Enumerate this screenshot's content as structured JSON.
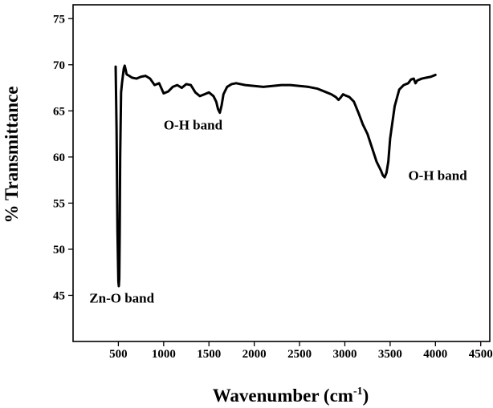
{
  "chart_data": {
    "type": "line",
    "title": "",
    "xlabel": "Wavenumber (cm",
    "xlabel_sup": "-1",
    "xlabel_close": ")",
    "ylabel": "% Transmittance",
    "xlim": [
      0,
      4600
    ],
    "ylim": [
      40,
      76.5
    ],
    "xticks": [
      500,
      1000,
      1500,
      2000,
      2500,
      3000,
      3500,
      4000,
      4500
    ],
    "yticks": [
      45,
      50,
      55,
      60,
      65,
      70,
      75
    ],
    "grid": false,
    "legend": "none",
    "line_color": "#000000",
    "series": [
      {
        "x": [
          470,
          480,
          490,
          500,
          505,
          510,
          515,
          520,
          530,
          540,
          550,
          560,
          570,
          580,
          590,
          600,
          620,
          650,
          700,
          750,
          800,
          850,
          900,
          950,
          1000,
          1050,
          1100,
          1150,
          1200,
          1250,
          1300,
          1350,
          1400,
          1450,
          1500,
          1550,
          1580,
          1600,
          1620,
          1640,
          1660,
          1700,
          1750,
          1800,
          1900,
          2000,
          2100,
          2200,
          2300,
          2400,
          2500,
          2600,
          2700,
          2800,
          2850,
          2900,
          2930,
          2950,
          2980,
          3000,
          3050,
          3100,
          3150,
          3200,
          3250,
          3300,
          3350,
          3400,
          3420,
          3440,
          3460,
          3480,
          3500,
          3550,
          3600,
          3650,
          3700,
          3730,
          3760,
          3780,
          3800,
          3850,
          3900,
          3950,
          4000
        ],
        "y": [
          69.8,
          63.0,
          52.0,
          46.5,
          46.0,
          46.8,
          52.0,
          60.0,
          67.0,
          68.0,
          68.8,
          69.6,
          69.9,
          69.5,
          69.0,
          68.9,
          68.8,
          68.6,
          68.5,
          68.7,
          68.8,
          68.5,
          67.8,
          68.0,
          66.9,
          67.1,
          67.6,
          67.8,
          67.5,
          67.9,
          67.8,
          67.0,
          66.6,
          66.8,
          67.0,
          66.6,
          66.0,
          65.2,
          64.8,
          65.6,
          66.8,
          67.6,
          67.9,
          68.0,
          67.8,
          67.7,
          67.6,
          67.7,
          67.8,
          67.8,
          67.7,
          67.6,
          67.4,
          67.0,
          66.8,
          66.5,
          66.2,
          66.4,
          66.8,
          66.7,
          66.5,
          66.0,
          64.8,
          63.5,
          62.5,
          61.0,
          59.5,
          58.5,
          58.0,
          57.8,
          58.3,
          59.5,
          62.0,
          65.5,
          67.3,
          67.8,
          68.0,
          68.4,
          68.5,
          68.0,
          68.3,
          68.5,
          68.6,
          68.7,
          68.9
        ]
      }
    ],
    "annotations": [
      {
        "text": "Zn-O band",
        "x": 180,
        "y": 44.2
      },
      {
        "text": "O-H band",
        "x": 1000,
        "y": 63.0
      },
      {
        "text": "O-H band",
        "x": 3700,
        "y": 57.5
      }
    ]
  }
}
